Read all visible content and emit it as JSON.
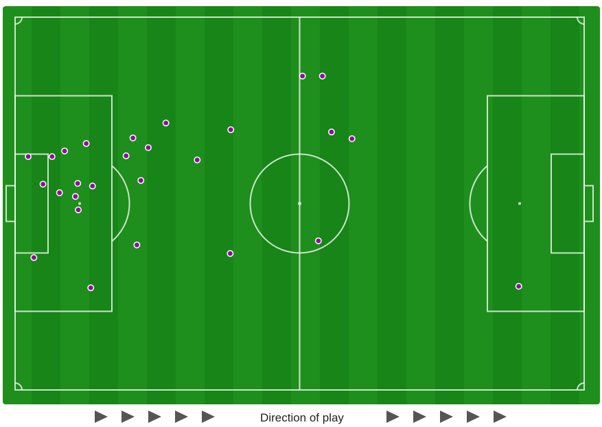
{
  "chart_data": {
    "type": "scatter",
    "title": "",
    "background": "football-pitch",
    "xlim": [
      0,
      100
    ],
    "ylim": [
      0,
      100
    ],
    "grid": false,
    "marker_color": "#8e0f9e",
    "marker_edge_color": "#ffffff",
    "pitch_colors": [
      "#1e8f1c",
      "#178517"
    ],
    "points": [
      {
        "x": 50.5,
        "y": 15.8
      },
      {
        "x": 54.0,
        "y": 15.8
      },
      {
        "x": 26.5,
        "y": 28.4
      },
      {
        "x": 37.9,
        "y": 30.2
      },
      {
        "x": 55.6,
        "y": 30.8
      },
      {
        "x": 59.2,
        "y": 32.6
      },
      {
        "x": 20.7,
        "y": 32.4
      },
      {
        "x": 12.5,
        "y": 33.9
      },
      {
        "x": 23.4,
        "y": 35.0
      },
      {
        "x": 8.7,
        "y": 35.9
      },
      {
        "x": 2.3,
        "y": 37.4
      },
      {
        "x": 6.5,
        "y": 37.4
      },
      {
        "x": 19.5,
        "y": 37.2
      },
      {
        "x": 32.0,
        "y": 38.3
      },
      {
        "x": 22.1,
        "y": 43.8
      },
      {
        "x": 4.9,
        "y": 44.8
      },
      {
        "x": 11.0,
        "y": 44.6
      },
      {
        "x": 13.6,
        "y": 45.3
      },
      {
        "x": 7.8,
        "y": 47.1
      },
      {
        "x": 10.6,
        "y": 48.1
      },
      {
        "x": 11.1,
        "y": 51.7
      },
      {
        "x": 21.4,
        "y": 61.1
      },
      {
        "x": 37.8,
        "y": 63.4
      },
      {
        "x": 53.3,
        "y": 60.0
      },
      {
        "x": 3.3,
        "y": 64.5
      },
      {
        "x": 13.3,
        "y": 72.6
      },
      {
        "x": 88.5,
        "y": 72.2
      }
    ]
  },
  "footer": {
    "label": "Direction of play",
    "arrow_color": "#555555",
    "arrow_icon": "play-triangle-icon"
  }
}
